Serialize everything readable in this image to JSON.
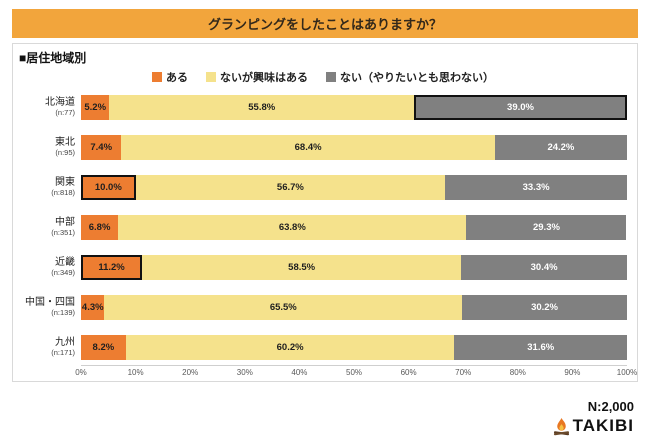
{
  "title": "グランピングをしたことはありますか？",
  "subtitle": "■居住地域別",
  "legend": [
    {
      "label": "ある",
      "color": "#ED7D31"
    },
    {
      "label": "ないが興味はある",
      "color": "#F5E28C"
    },
    {
      "label": "ない（やりたいとも思わない）",
      "color": "#808080"
    }
  ],
  "footer": {
    "sample": "N:2,000",
    "logo": "TAKIBI"
  },
  "chart_data": {
    "type": "bar",
    "stacked": true,
    "orientation": "horizontal",
    "title": "グランピングをしたことはありますか？（居住地域別）",
    "categories": [
      "北海道",
      "東北",
      "関東",
      "中部",
      "近畿",
      "中国・四国",
      "九州"
    ],
    "sample_sizes": [
      "(n:77)",
      "(n:95)",
      "(n:818)",
      "(n:351)",
      "(n:349)",
      "(n:139)",
      "(n:171)"
    ],
    "series": [
      {
        "name": "ある",
        "values": [
          5.2,
          7.4,
          10.0,
          6.8,
          11.2,
          4.3,
          8.2
        ]
      },
      {
        "name": "ないが興味はある",
        "values": [
          55.8,
          68.4,
          56.7,
          63.8,
          58.5,
          65.5,
          60.2
        ]
      },
      {
        "name": "ない（やりたいとも思わない）",
        "values": [
          39.0,
          24.2,
          33.3,
          29.3,
          30.4,
          30.2,
          31.6
        ]
      }
    ],
    "highlights": [
      {
        "row": 0,
        "segment": 2
      },
      {
        "row": 2,
        "segment": 0
      },
      {
        "row": 4,
        "segment": 0
      }
    ],
    "x_ticks": [
      "0%",
      "10%",
      "20%",
      "30%",
      "40%",
      "50%",
      "60%",
      "70%",
      "80%",
      "90%",
      "100%"
    ],
    "xlim": [
      0,
      100
    ],
    "legend_position": "top",
    "grid": false
  }
}
